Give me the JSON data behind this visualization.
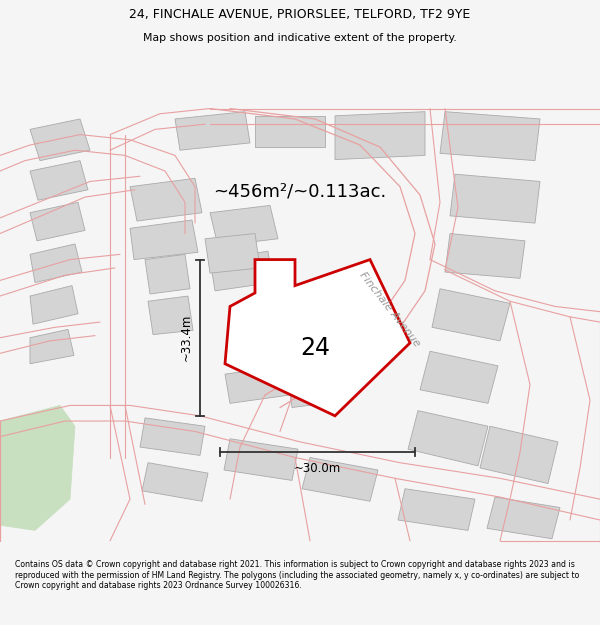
{
  "title_line1": "24, FINCHALE AVENUE, PRIORSLEE, TELFORD, TF2 9YE",
  "title_line2": "Map shows position and indicative extent of the property.",
  "area_text": "~456m²/~0.113ac.",
  "label_number": "24",
  "label_width": "~30.0m",
  "label_height": "~33.4m",
  "road_label": "Finchale Avenue",
  "footer_text": "Contains OS data © Crown copyright and database right 2021. This information is subject to Crown copyright and database rights 2023 and is reproduced with the permission of HM Land Registry. The polygons (including the associated geometry, namely x, y co-ordinates) are subject to Crown copyright and database rights 2023 Ordnance Survey 100026316.",
  "bg_color": "#f5f5f5",
  "map_bg": "#ffffff",
  "highlight_color": "#cc0000",
  "building_fill": "#d4d4d4",
  "building_edge": "#aaaaaa",
  "road_line_color": "#e8a0a0",
  "road_fill_color": "#f5e8e8",
  "green_color": "#c8dfc0",
  "highlight_fill": "#ffffff",
  "dim_color": "#333333"
}
